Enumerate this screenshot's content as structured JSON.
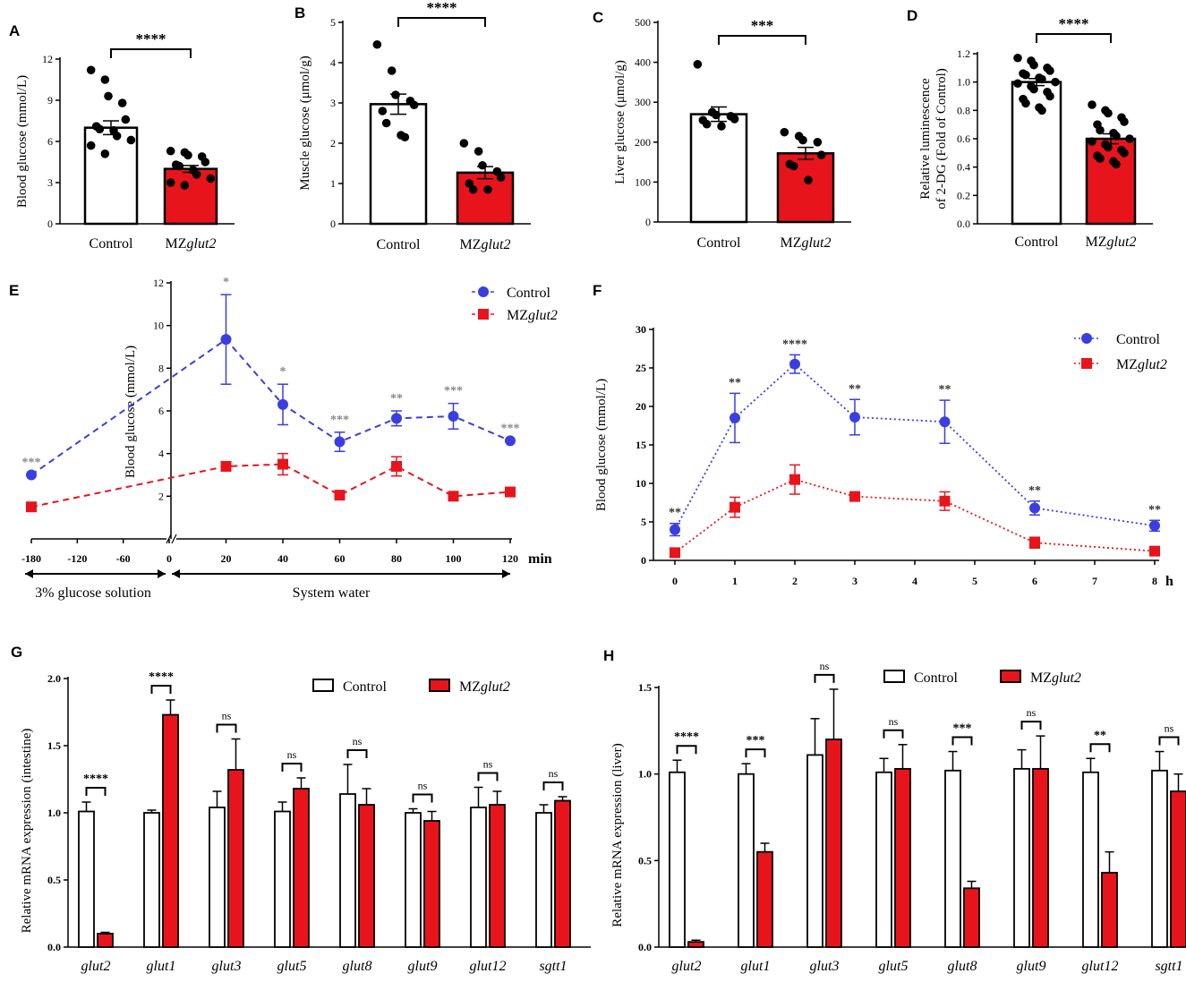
{
  "colors": {
    "control_bar": "#ffffff",
    "mutant_bar": "#e8141c",
    "control_line": "#3a3ee0",
    "mutant_line": "#e8141c",
    "sig_gray": "#888888",
    "axis": "#000000"
  },
  "legend": {
    "control": "Control",
    "mutant_prefix": "MZ",
    "mutant_italic": "glut2"
  },
  "chart_data": [
    {
      "panel": "A",
      "type": "bar",
      "categories": [
        "Control",
        "MZglut2"
      ],
      "values": [
        7.0,
        4.0
      ],
      "errors": [
        0.5,
        0.25
      ],
      "points": [
        [
          11.2,
          10.5,
          9.3,
          8.8,
          7.6,
          7.1,
          6.9,
          6.8,
          6.4,
          6.1,
          5.7,
          5.1
        ],
        [
          5.3,
          5.2,
          5.0,
          4.9,
          4.5,
          4.3,
          4.2,
          3.9,
          3.6,
          3.3,
          3.0,
          2.8
        ]
      ],
      "ylabel": "Blood glucose (mmol/L)",
      "ylim": [
        0,
        12
      ],
      "yticks": [
        0,
        3,
        6,
        9,
        12
      ],
      "ytick_labels": [
        "0",
        "3",
        "6",
        "9",
        "12"
      ],
      "significance": "****"
    },
    {
      "panel": "B",
      "type": "bar",
      "categories": [
        "Control",
        "MZglut2"
      ],
      "values": [
        2.97,
        1.27
      ],
      "errors": [
        0.25,
        0.15
      ],
      "points": [
        [
          4.45,
          3.8,
          3.2,
          3.05,
          2.95,
          2.8,
          2.5,
          2.2,
          2.15
        ],
        [
          2.0,
          1.8,
          1.45,
          1.3,
          1.15,
          1.0,
          0.85,
          0.85
        ]
      ],
      "ylabel": "Muscle glucose (μmol/g)",
      "ylim": [
        0,
        5
      ],
      "yticks": [
        0,
        1,
        2,
        3,
        4,
        5
      ],
      "ytick_labels": [
        "0",
        "1",
        "2",
        "3",
        "4",
        "5"
      ],
      "significance": "****"
    },
    {
      "panel": "C",
      "type": "bar",
      "categories": [
        "Control",
        "MZglut2"
      ],
      "values": [
        270,
        172
      ],
      "errors": [
        18,
        15
      ],
      "points": [
        [
          395,
          275,
          268,
          265,
          258,
          255,
          245,
          240
        ],
        [
          225,
          215,
          205,
          200,
          168,
          145,
          140,
          105
        ]
      ],
      "ylabel": "Liver glucose (μmol/g)",
      "ylim": [
        0,
        500
      ],
      "yticks": [
        0,
        100,
        200,
        300,
        400,
        500
      ],
      "ytick_labels": [
        "0",
        "100",
        "200",
        "300",
        "400",
        "500"
      ],
      "significance": "***"
    },
    {
      "panel": "D",
      "type": "bar",
      "categories": [
        "Control",
        "MZglut2"
      ],
      "values": [
        1.0,
        0.6
      ],
      "errors": [
        0.025,
        0.035
      ],
      "points": [
        [
          1.17,
          1.15,
          1.12,
          1.1,
          1.08,
          1.06,
          1.05,
          1.03,
          1.02,
          1.0,
          0.99,
          0.97,
          0.95,
          0.93,
          0.9,
          0.88,
          0.85,
          0.82,
          0.8
        ],
        [
          0.84,
          0.8,
          0.78,
          0.75,
          0.72,
          0.7,
          0.66,
          0.64,
          0.62,
          0.6,
          0.58,
          0.56,
          0.54,
          0.52,
          0.5,
          0.48,
          0.46,
          0.44,
          0.42
        ]
      ],
      "ylabel": "Relative luminescence of 2-DG (Fold of Control)",
      "ylabel_line1": "Relative luminescence",
      "ylabel_line2": "of 2-DG (Fold of Control)",
      "ylim": [
        0,
        1.2
      ],
      "yticks": [
        0,
        0.2,
        0.4,
        0.6,
        0.8,
        1.0,
        1.2
      ],
      "ytick_labels": [
        "0.0",
        "0.2",
        "0.4",
        "0.6",
        "0.8",
        "1.0",
        "1.2"
      ],
      "significance": "****"
    },
    {
      "panel": "E",
      "type": "line",
      "x": [
        -180,
        20,
        40,
        60,
        80,
        100,
        120
      ],
      "series": [
        {
          "name": "Control",
          "values": [
            3.0,
            9.35,
            6.3,
            4.55,
            5.65,
            5.75,
            4.6
          ],
          "errors": [
            0,
            2.1,
            0.95,
            0.45,
            0.35,
            0.6,
            0
          ]
        },
        {
          "name": "MZglut2",
          "values": [
            1.5,
            3.4,
            3.5,
            2.05,
            3.4,
            2.0,
            2.2
          ],
          "errors": [
            0,
            0,
            0.5,
            0,
            0.45,
            0,
            0
          ]
        }
      ],
      "significance": [
        "***",
        "*",
        "*",
        "***",
        "**",
        "***",
        "***"
      ],
      "ylabel": "Blood glucose (mmol/L)",
      "ylim": [
        0,
        12
      ],
      "yticks": [
        2,
        4,
        6,
        8,
        10,
        12
      ],
      "ytick_labels": [
        "2",
        "4",
        "6",
        "8",
        "10",
        "12"
      ],
      "xticks_pre": [
        "-180",
        "-120",
        "-60",
        "0"
      ],
      "xticks_pre_values": [
        -180,
        -120,
        -60,
        0
      ],
      "xticks_post": [
        "20",
        "40",
        "60",
        "80",
        "100",
        "120"
      ],
      "xticks_post_values": [
        20,
        40,
        60,
        80,
        100,
        120
      ],
      "xunit": "min",
      "phase_labels": [
        "3% glucose solution",
        "System water"
      ]
    },
    {
      "panel": "F",
      "type": "line",
      "x": [
        0,
        1,
        2,
        3,
        4.5,
        6,
        8
      ],
      "series": [
        {
          "name": "Control",
          "values": [
            4.0,
            18.5,
            25.5,
            18.6,
            18.0,
            6.8,
            4.5
          ],
          "errors": [
            0.8,
            3.2,
            1.2,
            2.3,
            2.8,
            0.9,
            0.7
          ]
        },
        {
          "name": "MZglut2",
          "values": [
            1.0,
            6.9,
            10.5,
            8.3,
            7.7,
            2.3,
            1.2
          ],
          "errors": [
            0,
            1.3,
            1.9,
            0,
            1.2,
            0.7,
            0
          ]
        }
      ],
      "significance": [
        "**",
        "**",
        "****",
        "**",
        "**",
        "**",
        "**"
      ],
      "ylabel": "Blood glucose (mmol/L)",
      "ylim": [
        0,
        30
      ],
      "yticks": [
        0,
        5,
        10,
        15,
        20,
        25,
        30
      ],
      "ytick_labels": [
        "0",
        "5",
        "10",
        "15",
        "20",
        "25",
        "30"
      ],
      "xticks": [
        "0",
        "1",
        "2",
        "3",
        "4",
        "5",
        "6",
        "7",
        "8"
      ],
      "xtick_values": [
        0,
        1,
        2,
        3,
        4,
        5,
        6,
        7,
        8
      ],
      "xunit": "h"
    },
    {
      "panel": "G",
      "type": "bar",
      "categories": [
        "glut2",
        "glut1",
        "glut3",
        "glut5",
        "glut8",
        "glut9",
        "glut12",
        "sgtt1"
      ],
      "series": [
        {
          "name": "Control",
          "values": [
            1.01,
            1.0,
            1.04,
            1.01,
            1.14,
            1.0,
            1.04,
            1.0
          ],
          "errors": [
            0.07,
            0.02,
            0.12,
            0.07,
            0.22,
            0.03,
            0.15,
            0.06
          ]
        },
        {
          "name": "MZglut2",
          "values": [
            0.1,
            1.73,
            1.32,
            1.18,
            1.06,
            0.94,
            1.06,
            1.09
          ],
          "errors": [
            0.01,
            0.11,
            0.23,
            0.08,
            0.12,
            0.07,
            0.1,
            0.03
          ]
        }
      ],
      "significance": [
        "****",
        "****",
        "ns",
        "ns",
        "ns",
        "ns",
        "ns",
        "ns"
      ],
      "ylabel": "Relative mRNA expression (intestine)",
      "ylim": [
        0,
        2.0
      ],
      "yticks": [
        0,
        0.5,
        1.0,
        1.5,
        2.0
      ],
      "ytick_labels": [
        "0.0",
        "0.5",
        "1.0",
        "1.5",
        "2.0"
      ]
    },
    {
      "panel": "H",
      "type": "bar",
      "categories": [
        "glut2",
        "glut1",
        "glut3",
        "glut5",
        "glut8",
        "glut9",
        "glut12",
        "sgtt1"
      ],
      "series": [
        {
          "name": "Control",
          "values": [
            1.01,
            1.0,
            1.11,
            1.01,
            1.02,
            1.03,
            1.01,
            1.02
          ],
          "errors": [
            0.07,
            0.06,
            0.21,
            0.08,
            0.11,
            0.11,
            0.08,
            0.11
          ]
        },
        {
          "name": "MZglut2",
          "values": [
            0.03,
            0.55,
            1.2,
            1.03,
            0.34,
            1.03,
            0.43,
            0.9
          ],
          "errors": [
            0.01,
            0.05,
            0.29,
            0.14,
            0.04,
            0.19,
            0.12,
            0.1
          ]
        }
      ],
      "significance": [
        "****",
        "***",
        "ns",
        "ns",
        "***",
        "ns",
        "**",
        "ns"
      ],
      "ylabel": "Relative mRNA expression (liver)",
      "ylim": [
        0,
        1.5
      ],
      "yticks": [
        0,
        0.5,
        1.0,
        1.5
      ],
      "ytick_labels": [
        "0.0",
        "0.5",
        "1.0",
        "1.5"
      ]
    }
  ]
}
